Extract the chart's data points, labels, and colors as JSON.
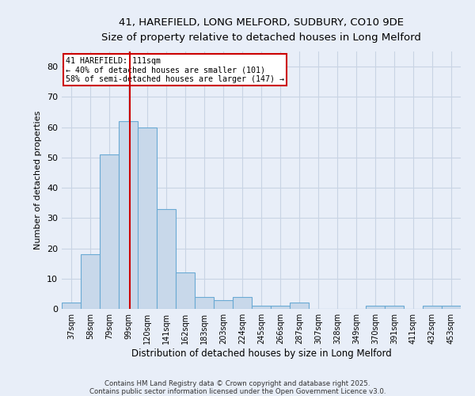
{
  "title1": "41, HAREFIELD, LONG MELFORD, SUDBURY, CO10 9DE",
  "title2": "Size of property relative to detached houses in Long Melford",
  "xlabel": "Distribution of detached houses by size in Long Melford",
  "ylabel": "Number of detached properties",
  "bins": [
    "37sqm",
    "58sqm",
    "79sqm",
    "99sqm",
    "120sqm",
    "141sqm",
    "162sqm",
    "183sqm",
    "203sqm",
    "224sqm",
    "245sqm",
    "266sqm",
    "287sqm",
    "307sqm",
    "328sqm",
    "349sqm",
    "370sqm",
    "391sqm",
    "411sqm",
    "432sqm",
    "453sqm"
  ],
  "values": [
    2,
    18,
    51,
    62,
    60,
    33,
    12,
    4,
    3,
    4,
    1,
    1,
    2,
    0,
    0,
    0,
    1,
    1,
    0,
    1,
    1
  ],
  "bar_color": "#c8d8ea",
  "bar_edge_color": "#6aaad4",
  "grid_color": "#c8d4e4",
  "bg_color": "#e8eef8",
  "marker_label": "41 HAREFIELD: 111sqm",
  "annotation_line1": "← 40% of detached houses are smaller (101)",
  "annotation_line2": "58% of semi-detached houses are larger (147) →",
  "annotation_box_color": "#ffffff",
  "annotation_box_edge": "#cc0000",
  "marker_line_color": "#cc0000",
  "ylim": [
    0,
    85
  ],
  "yticks": [
    0,
    10,
    20,
    30,
    40,
    50,
    60,
    70,
    80
  ],
  "footer1": "Contains HM Land Registry data © Crown copyright and database right 2025.",
  "footer2": "Contains public sector information licensed under the Open Government Licence v3.0."
}
